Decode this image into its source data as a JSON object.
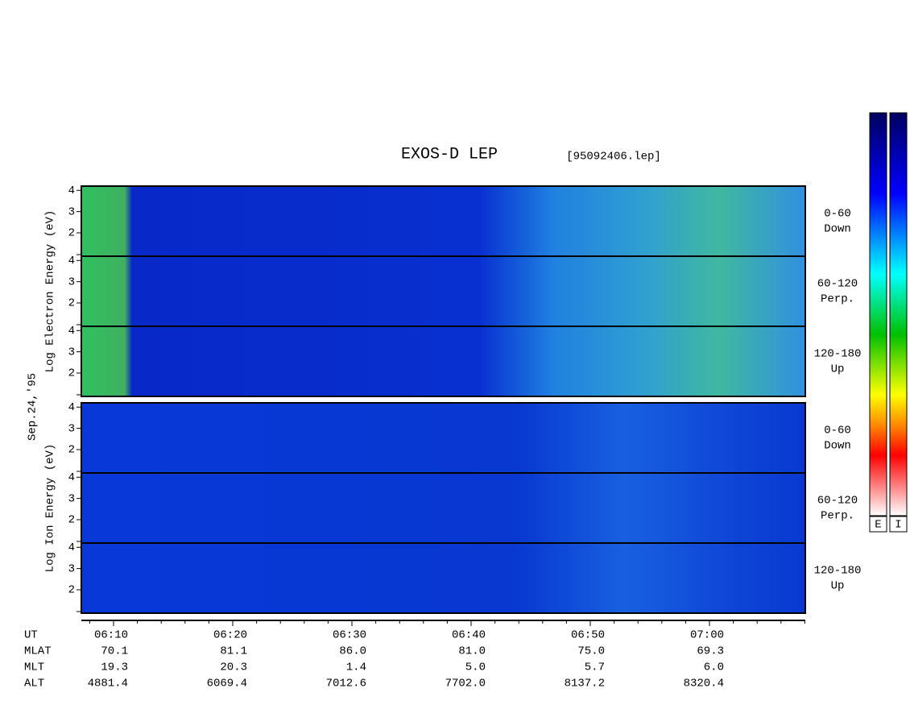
{
  "title": "EXOS-D LEP",
  "file": "[95092406.lep]",
  "date": "Sep.24,'95",
  "ylim": [
    0.9,
    4.2
  ],
  "groups": [
    {
      "label": "Log Electron Energy (eV)",
      "panels": [
        {
          "label": [
            "0-60",
            "Down"
          ],
          "yticks": [
            2,
            3,
            4
          ]
        },
        {
          "label": [
            "60-120",
            "Perp."
          ],
          "yticks": [
            2,
            3,
            4
          ]
        },
        {
          "label": [
            "120-180",
            "Up"
          ],
          "yticks": [
            2,
            3,
            4
          ]
        }
      ]
    },
    {
      "label": "Log Ion Energy (eV)",
      "panels": [
        {
          "label": [
            "0-60",
            "Down"
          ],
          "yticks": [
            2,
            3,
            4
          ]
        },
        {
          "label": [
            "60-120",
            "Perp."
          ],
          "yticks": [
            2,
            3,
            4
          ]
        },
        {
          "label": [
            "120-180",
            "Up"
          ],
          "yticks": [
            2,
            3,
            4
          ]
        }
      ]
    }
  ],
  "xaxis": {
    "rows": [
      {
        "name": "UT",
        "values": [
          "06:10",
          "06:20",
          "06:30",
          "06:40",
          "06:50",
          "07:00"
        ]
      },
      {
        "name": "MLAT",
        "values": [
          "70.1",
          "81.1",
          "86.0",
          "81.0",
          "75.0",
          "69.3"
        ]
      },
      {
        "name": "MLT",
        "values": [
          "19.3",
          "20.3",
          "1.4",
          "5.0",
          "5.7",
          "6.0"
        ]
      },
      {
        "name": "ALT",
        "values": [
          "4881.4",
          "6069.4",
          "7012.6",
          "7702.0",
          "8137.2",
          "8320.4"
        ]
      }
    ]
  },
  "colorbars": [
    "E",
    "I"
  ]
}
